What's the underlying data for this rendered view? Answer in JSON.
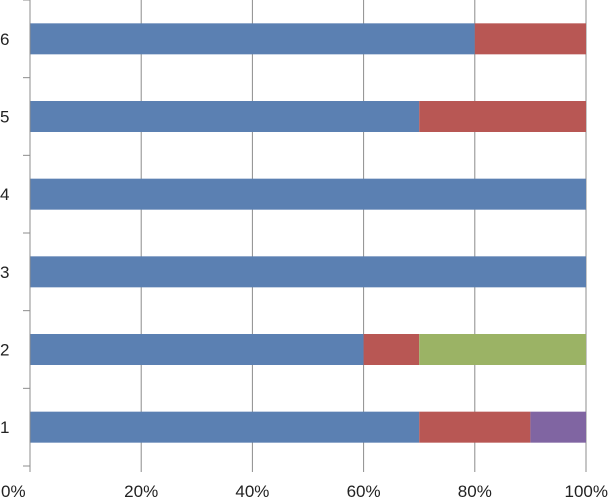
{
  "chart_data": {
    "type": "bar",
    "orientation": "horizontal",
    "stacked": "percent",
    "title": "",
    "xlabel": "",
    "ylabel": "",
    "categories": [
      "1",
      "2",
      "3",
      "4",
      "5",
      "6"
    ],
    "xlim": [
      0,
      100
    ],
    "x_ticks": [
      "0%",
      "20%",
      "40%",
      "60%",
      "80%",
      "100%"
    ],
    "grid": "vertical",
    "legend": "none",
    "series": [
      {
        "color": "#5B80B2",
        "values": [
          70,
          60,
          100,
          100,
          70,
          80
        ]
      },
      {
        "color": "#B85754",
        "values": [
          20,
          10,
          0,
          0,
          30,
          20
        ]
      },
      {
        "color": "#9BB365",
        "values": [
          0,
          30,
          0,
          0,
          0,
          0
        ]
      },
      {
        "color": "#8065A2",
        "values": [
          10,
          0,
          0,
          0,
          0,
          0
        ]
      }
    ]
  }
}
